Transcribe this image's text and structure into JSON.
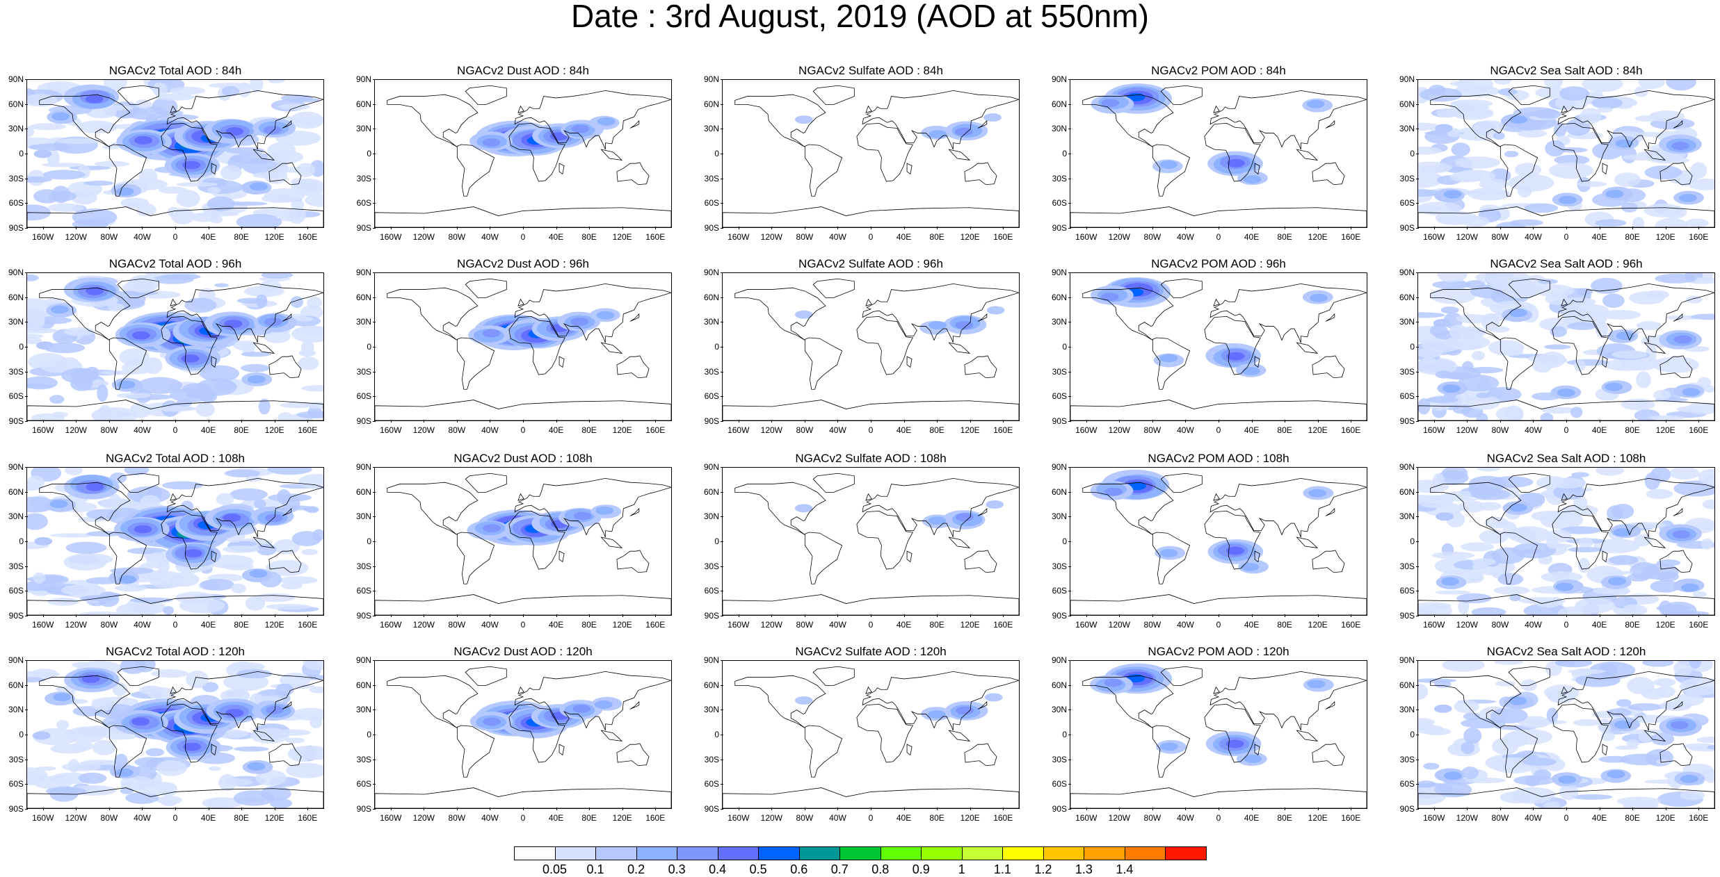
{
  "title": "Date : 3rd August, 2019 (AOD at 550nm)",
  "axes": {
    "lat_ticks": [
      "90N",
      "60N",
      "30N",
      "0",
      "30S",
      "60S",
      "90S"
    ],
    "lon_ticks": [
      "160W",
      "120W",
      "80W",
      "40W",
      "0",
      "40E",
      "80E",
      "120E",
      "160E"
    ]
  },
  "species_order": [
    "Total",
    "Dust",
    "Sulfate",
    "POM",
    "Sea Salt"
  ],
  "panels": [
    [
      "NGACv2 Total AOD : 84h",
      "NGACv2 Dust AOD : 84h",
      "NGACv2 Sulfate AOD : 84h",
      "NGACv2 POM AOD : 84h",
      "NGACv2 Sea Salt AOD : 84h"
    ],
    [
      "NGACv2 Total AOD : 96h",
      "NGACv2 Dust AOD : 96h",
      "NGACv2 Sulfate AOD : 96h",
      "NGACv2 POM AOD : 96h",
      "NGACv2 Sea Salt AOD : 96h"
    ],
    [
      "NGACv2 Total AOD : 108h",
      "NGACv2 Dust AOD : 108h",
      "NGACv2 Sulfate AOD : 108h",
      "NGACv2 POM AOD : 108h",
      "NGACv2 Sea Salt AOD : 108h"
    ],
    [
      "NGACv2 Total AOD : 120h",
      "NGACv2 Dust AOD : 120h",
      "NGACv2 Sulfate AOD : 120h",
      "NGACv2 POM AOD : 120h",
      "NGACv2 Sea Salt  AOD : 120h"
    ]
  ],
  "colorbar": {
    "labels": [
      "0.05",
      "0.1",
      "0.2",
      "0.3",
      "0.4",
      "0.5",
      "0.6",
      "0.7",
      "0.8",
      "0.9",
      "1",
      "1.1",
      "1.2",
      "1.3",
      "1.4"
    ],
    "colors": [
      "#ffffff",
      "#d6e2ff",
      "#b5c9ff",
      "#8eb2ff",
      "#7f96ff",
      "#6370ff",
      "#0063ff",
      "#009696",
      "#00c633",
      "#63ff00",
      "#96ff00",
      "#c6ff33",
      "#ffff00",
      "#ffc600",
      "#ffa000",
      "#ff7c00",
      "#ff1900"
    ]
  },
  "aerosol_regions": {
    "Total": [
      {
        "lon": -10,
        "lat": 18,
        "level": 7
      },
      {
        "lon": 15,
        "lat": 10,
        "level": 6
      },
      {
        "lon": 40,
        "lat": 20,
        "level": 5
      },
      {
        "lon": -40,
        "lat": 15,
        "level": 4
      },
      {
        "lon": 70,
        "lat": 28,
        "level": 4
      },
      {
        "lon": -100,
        "lat": 68,
        "level": 4
      },
      {
        "lon": 120,
        "lat": 30,
        "level": 3
      },
      {
        "lon": 20,
        "lat": -15,
        "level": 4
      },
      {
        "lon": -140,
        "lat": 45,
        "level": 2
      },
      {
        "lon": 100,
        "lat": -40,
        "level": 2
      },
      {
        "lon": -60,
        "lat": -45,
        "level": 2
      },
      {
        "lon": -160,
        "lat": 0,
        "level": 1
      }
    ],
    "Dust": [
      {
        "lon": -10,
        "lat": 18,
        "level": 6
      },
      {
        "lon": 15,
        "lat": 15,
        "level": 5
      },
      {
        "lon": 45,
        "lat": 22,
        "level": 4
      },
      {
        "lon": -40,
        "lat": 15,
        "level": 3
      },
      {
        "lon": 70,
        "lat": 30,
        "level": 3
      },
      {
        "lon": 100,
        "lat": 38,
        "level": 2
      }
    ],
    "Sulfate": [
      {
        "lon": 115,
        "lat": 28,
        "level": 3
      },
      {
        "lon": -80,
        "lat": 40,
        "level": 1
      },
      {
        "lon": 80,
        "lat": 25,
        "level": 2
      },
      {
        "lon": 150,
        "lat": 45,
        "level": 1
      }
    ],
    "POM": [
      {
        "lon": -100,
        "lat": 68,
        "level": 5
      },
      {
        "lon": -130,
        "lat": 62,
        "level": 3
      },
      {
        "lon": 20,
        "lat": -12,
        "level": 4
      },
      {
        "lon": 40,
        "lat": -30,
        "level": 2
      },
      {
        "lon": 120,
        "lat": 60,
        "level": 2
      },
      {
        "lon": -60,
        "lat": -15,
        "level": 2
      }
    ],
    "Sea Salt": [
      {
        "lon": -140,
        "lat": -50,
        "level": 2
      },
      {
        "lon": 60,
        "lat": -50,
        "level": 2
      },
      {
        "lon": 140,
        "lat": 10,
        "level": 3
      },
      {
        "lon": 70,
        "lat": 12,
        "level": 2
      },
      {
        "lon": -60,
        "lat": 40,
        "level": 2
      },
      {
        "lon": -150,
        "lat": 30,
        "level": 1
      },
      {
        "lon": 0,
        "lat": -55,
        "level": 2
      },
      {
        "lon": 150,
        "lat": -55,
        "level": 2
      }
    ]
  }
}
